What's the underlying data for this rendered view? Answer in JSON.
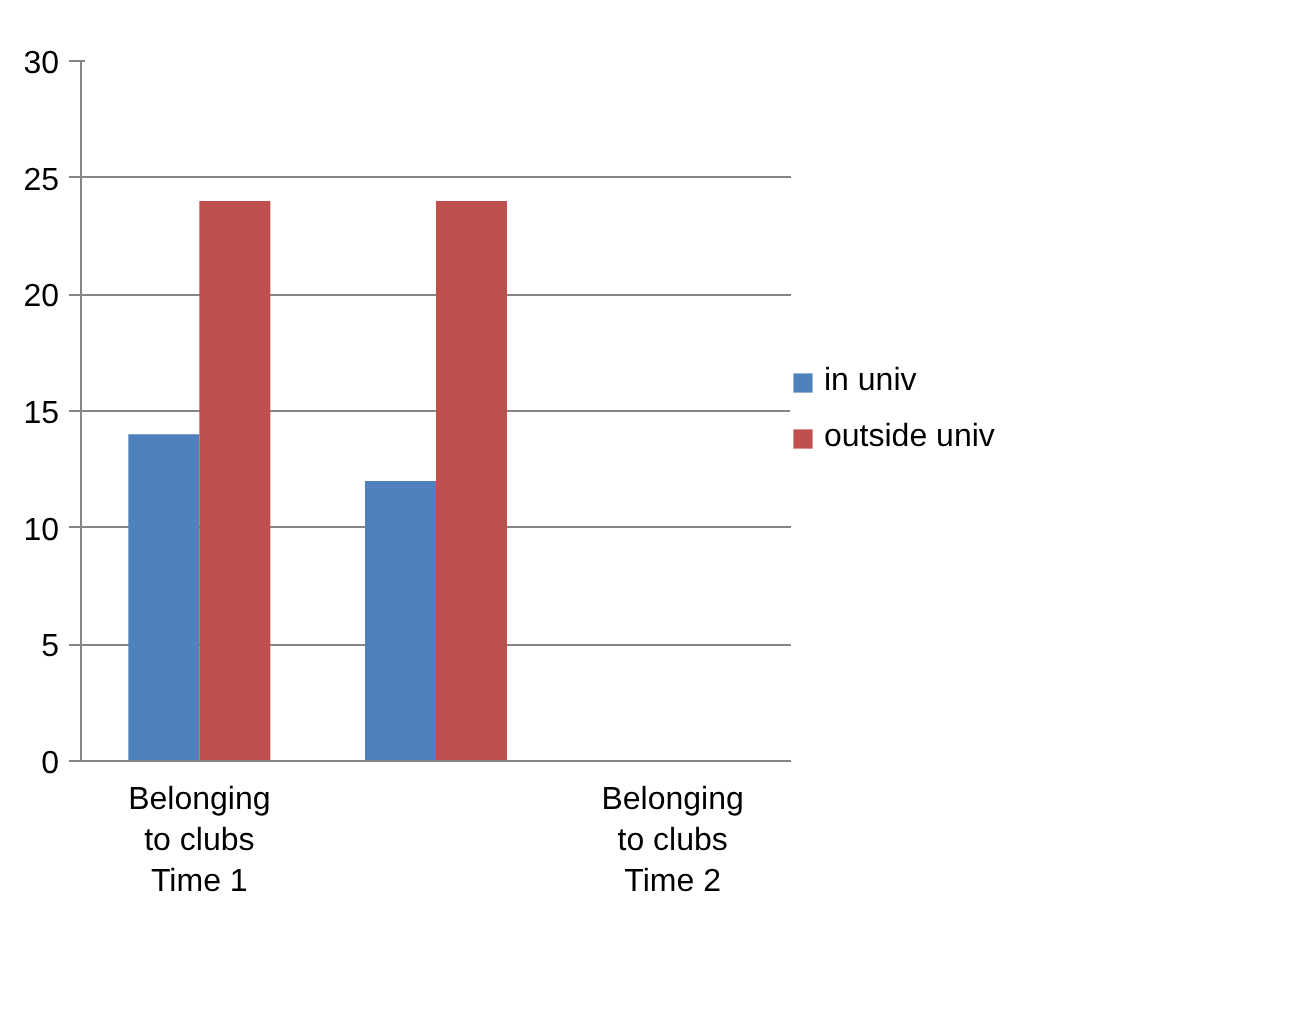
{
  "chart_data": {
    "type": "bar",
    "categories": [
      "Belonging to clubs Time 1",
      null,
      "Belonging to clubs Time 2"
    ],
    "series": [
      {
        "name": "in univ",
        "color": "#4f81bd",
        "values": [
          14,
          12,
          null
        ]
      },
      {
        "name": "outside univ",
        "color": "#c0504d",
        "values": [
          24,
          24,
          null
        ]
      }
    ],
    "ylim": [
      0,
      30
    ],
    "yticks": [
      0,
      5,
      10,
      15,
      20,
      25,
      30
    ],
    "grid": "y",
    "legend": "right"
  }
}
